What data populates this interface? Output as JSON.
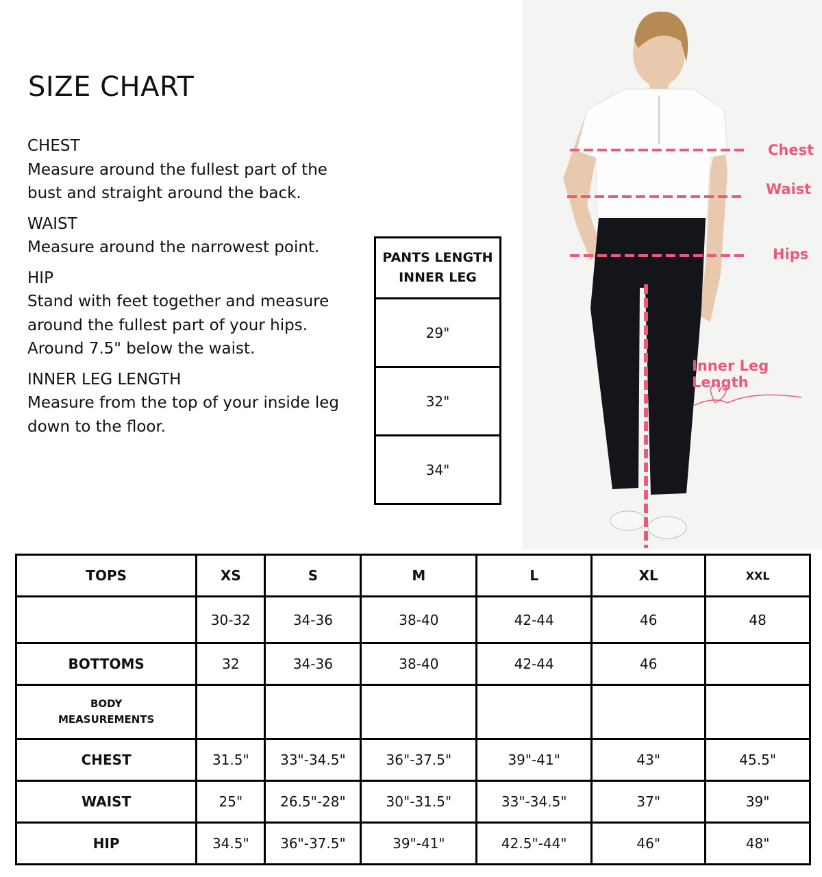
{
  "title": "SIZE CHART",
  "guide": [
    {
      "heading": "CHEST",
      "text": "Measure around the fullest part of the bust and straight around the back."
    },
    {
      "heading": "WAIST",
      "text": "Measure around the narrowest point."
    },
    {
      "heading": "HIP",
      "text": "Stand with feet together and measure around the fullest part of your hips. Around 7.5\" below the waist."
    },
    {
      "heading": "INNER LEG LENGTH",
      "text": "Measure from the top of your inside leg down to the floor."
    }
  ],
  "pants_table": {
    "header_line1": "PANTS LENGTH",
    "header_line2": "INNER LEG",
    "rows": [
      "29\"",
      "32\"",
      "34\""
    ]
  },
  "photo": {
    "labels": {
      "chest": "Chest",
      "waist": "Waist",
      "hips": "Hips",
      "inner_leg": "Inner Leg Length"
    },
    "accent_color": "#ea5a7d"
  },
  "size_table": {
    "header": [
      "TOPS",
      "XS",
      "S",
      "M",
      "L",
      "XL",
      "XXL"
    ],
    "rows": [
      [
        "",
        "30-32",
        "34-36",
        "38-40",
        "42-44",
        "46",
        "48"
      ],
      [
        "BOTTOMS",
        "32",
        "34-36",
        "38-40",
        "42-44",
        "46",
        ""
      ],
      [
        "BODY MEASUREMENTS",
        "",
        "",
        "",
        "",
        "",
        ""
      ],
      [
        "CHEST",
        "31.5\"",
        "33\"-34.5\"",
        "36\"-37.5\"",
        "39\"-41\"",
        "43\"",
        "45.5\""
      ],
      [
        "WAIST",
        "25\"",
        "26.5\"-28\"",
        "30\"-31.5\"",
        "33\"-34.5\"",
        "37\"",
        "39\""
      ],
      [
        "HIP",
        "34.5\"",
        "36\"-37.5\"",
        "39\"-41\"",
        "42.5\"-44\"",
        "46\"",
        "48\""
      ]
    ]
  }
}
